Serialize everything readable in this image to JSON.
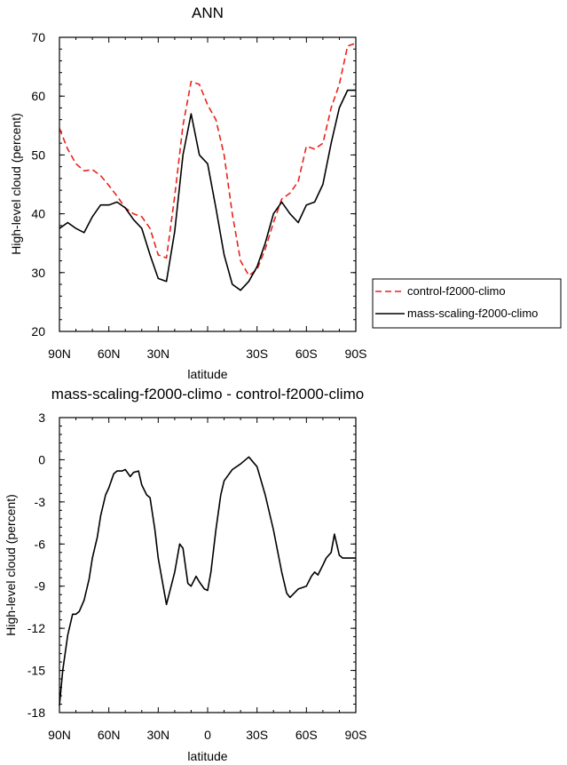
{
  "chart_data": [
    {
      "type": "line",
      "title": "ANN",
      "xlabel": "latitude",
      "ylabel": "High-level cloud (percent)",
      "xlim": [
        90,
        -90
      ],
      "ylim": [
        20,
        70
      ],
      "xticks": [
        90,
        60,
        30,
        0,
        -30,
        -60,
        -90
      ],
      "xtick_labels": [
        "90N",
        "60N",
        "30N",
        "",
        "30S",
        "60S",
        "90S"
      ],
      "yticks": [
        20,
        30,
        40,
        50,
        60,
        70
      ],
      "ytick_labels": [
        "20",
        "30",
        "40",
        "50",
        "60",
        "70"
      ],
      "legend_position": "right",
      "series": [
        {
          "name": "control-f2000-climo",
          "color": "#e8241c",
          "dash": "dashed",
          "x": [
            90,
            85,
            80,
            75,
            70,
            65,
            60,
            55,
            50,
            45,
            40,
            35,
            30,
            25,
            20,
            15,
            10,
            5,
            0,
            -5,
            -10,
            -15,
            -20,
            -25,
            -30,
            -35,
            -40,
            -45,
            -50,
            -55,
            -60,
            -65,
            -70,
            -75,
            -80,
            -85,
            -90
          ],
          "y": [
            54.5,
            51,
            48.5,
            47.3,
            47.5,
            46.5,
            44.8,
            43,
            41,
            40,
            39.5,
            37.5,
            33,
            32.5,
            43,
            55,
            62.5,
            62,
            58.5,
            56,
            50,
            40,
            32,
            29.5,
            30.5,
            34,
            38.5,
            42.5,
            43.5,
            45.5,
            51.5,
            51,
            52,
            58,
            62,
            68.5,
            69
          ]
        },
        {
          "name": "mass-scaling-f2000-climo",
          "color": "#000000",
          "dash": "solid",
          "x": [
            90,
            85,
            80,
            75,
            70,
            65,
            60,
            55,
            50,
            45,
            40,
            35,
            30,
            25,
            20,
            15,
            10,
            5,
            0,
            -5,
            -10,
            -15,
            -20,
            -25,
            -30,
            -35,
            -40,
            -45,
            -50,
            -55,
            -60,
            -65,
            -70,
            -75,
            -80,
            -85,
            -90
          ],
          "y": [
            37.5,
            38.5,
            37.5,
            36.8,
            39.5,
            41.5,
            41.5,
            42,
            41,
            39,
            37.5,
            33,
            29,
            28.5,
            37,
            50,
            57,
            50,
            48.5,
            41,
            33,
            28,
            27,
            28.5,
            31,
            35,
            40,
            42,
            40,
            38.5,
            41.5,
            42,
            45,
            52,
            58,
            61,
            61
          ]
        }
      ]
    },
    {
      "type": "line",
      "title": "mass-scaling-f2000-climo - control-f2000-climo",
      "xlabel": "latitude",
      "ylabel": "High-level cloud (percent)",
      "xlim": [
        90,
        -90
      ],
      "ylim": [
        -18,
        3
      ],
      "xticks": [
        90,
        60,
        30,
        0,
        -30,
        -60,
        -90
      ],
      "xtick_labels": [
        "90N",
        "60N",
        "30N",
        "0",
        "30S",
        "60S",
        "90S"
      ],
      "yticks": [
        3,
        0,
        -3,
        -6,
        -9,
        -12,
        -15,
        -18
      ],
      "ytick_labels": [
        "3",
        "0",
        "-3",
        "-6",
        "-9",
        "-12",
        "-15",
        "-18"
      ],
      "series": [
        {
          "color": "#000000",
          "dash": "solid",
          "x": [
            90,
            88,
            85,
            82,
            80,
            78,
            75,
            72,
            70,
            67,
            65,
            62,
            60,
            57,
            55,
            52,
            50,
            47,
            45,
            42,
            40,
            37,
            35,
            32,
            30,
            25,
            20,
            17,
            15,
            12,
            10,
            7,
            5,
            2,
            0,
            -2,
            -5,
            -8,
            -10,
            -15,
            -20,
            -25,
            -30,
            -35,
            -40,
            -45,
            -48,
            -50,
            -55,
            -60,
            -63,
            -65,
            -67,
            -70,
            -72,
            -75,
            -77,
            -80,
            -82,
            -85,
            -88,
            -90
          ],
          "y": [
            -17.5,
            -15,
            -12.5,
            -11,
            -11,
            -10.8,
            -10,
            -8.5,
            -7,
            -5.5,
            -4,
            -2.5,
            -2,
            -1,
            -0.8,
            -0.8,
            -0.7,
            -1.2,
            -0.9,
            -0.8,
            -1.8,
            -2.5,
            -2.7,
            -5,
            -7,
            -10.3,
            -8,
            -6,
            -6.3,
            -8.8,
            -9,
            -8.3,
            -8.7,
            -9.2,
            -9.3,
            -8,
            -5,
            -2.5,
            -1.5,
            -0.7,
            -0.3,
            0.2,
            -0.5,
            -2.5,
            -5,
            -8,
            -9.5,
            -9.8,
            -9.2,
            -9,
            -8.3,
            -8,
            -8.2,
            -7.5,
            -7,
            -6.6,
            -5.3,
            -6.8,
            -7,
            -7,
            -7,
            -7
          ]
        }
      ]
    }
  ]
}
